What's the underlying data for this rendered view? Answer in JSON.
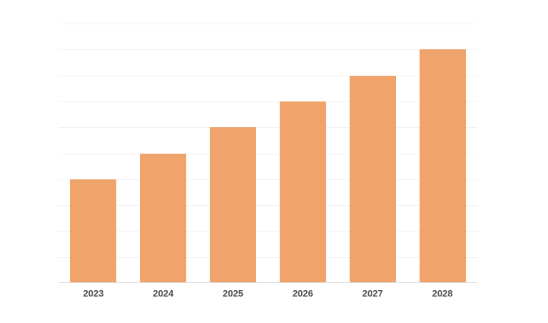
{
  "page": {
    "background": "#ffffff"
  },
  "chart_data": {
    "type": "bar",
    "title": "",
    "xlabel": "",
    "ylabel": "",
    "categories": [
      "2023",
      "2024",
      "2025",
      "2026",
      "2027",
      "2028"
    ],
    "values": [
      4,
      5,
      6,
      7,
      8,
      9
    ],
    "ylim": [
      0,
      10
    ],
    "gridline_step": 1,
    "grid": "horizontal gridlines only, no y-axis tick labels",
    "legend": "none",
    "colors": {
      "bar": "#F0A36B",
      "gridline": "#F1F1F1",
      "axis_line": "#DBDBDB",
      "x_label_text": "#515151"
    }
  }
}
